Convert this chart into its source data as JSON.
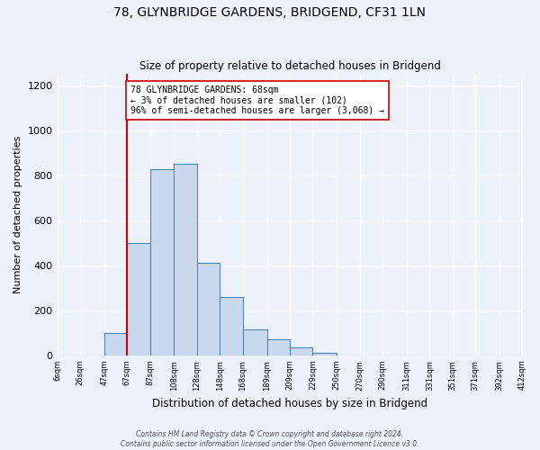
{
  "title": "78, GLYNBRIDGE GARDENS, BRIDGEND, CF31 1LN",
  "subtitle": "Size of property relative to detached houses in Bridgend",
  "xlabel": "Distribution of detached houses by size in Bridgend",
  "ylabel": "Number of detached properties",
  "bin_edges": [
    6,
    26,
    47,
    67,
    87,
    108,
    128,
    148,
    168,
    189,
    209,
    229,
    250,
    270,
    290,
    311,
    331,
    351,
    371,
    392,
    412
  ],
  "bin_labels": [
    "6sqm",
    "26sqm",
    "47sqm",
    "67sqm",
    "87sqm",
    "108sqm",
    "128sqm",
    "148sqm",
    "168sqm",
    "189sqm",
    "209sqm",
    "229sqm",
    "250sqm",
    "270sqm",
    "290sqm",
    "311sqm",
    "331sqm",
    "351sqm",
    "371sqm",
    "392sqm",
    "412sqm"
  ],
  "counts": [
    0,
    0,
    100,
    500,
    825,
    850,
    410,
    260,
    115,
    70,
    35,
    10,
    0,
    0,
    0,
    0,
    0,
    0,
    0,
    0
  ],
  "bar_color": "#c8d9ee",
  "bar_edge_color": "#4f86c0",
  "property_line_x": 67,
  "vline_color": "#cc0000",
  "annotation_text": "78 GLYNBRIDGE GARDENS: 68sqm\n← 3% of detached houses are smaller (102)\n96% of semi-detached houses are larger (3,068) →",
  "annotation_box_color": "#ffffff",
  "annotation_box_edge": "#cc0000",
  "ylim": [
    0,
    1250
  ],
  "yticks": [
    0,
    200,
    400,
    600,
    800,
    1000,
    1200
  ],
  "background_color": "#edf2fa",
  "axes_background": "#edf2fa",
  "grid_color": "#ffffff",
  "footer_line1": "Contains HM Land Registry data © Crown copyright and database right 2024.",
  "footer_line2": "Contains public sector information licensed under the Open Government Licence v3.0."
}
